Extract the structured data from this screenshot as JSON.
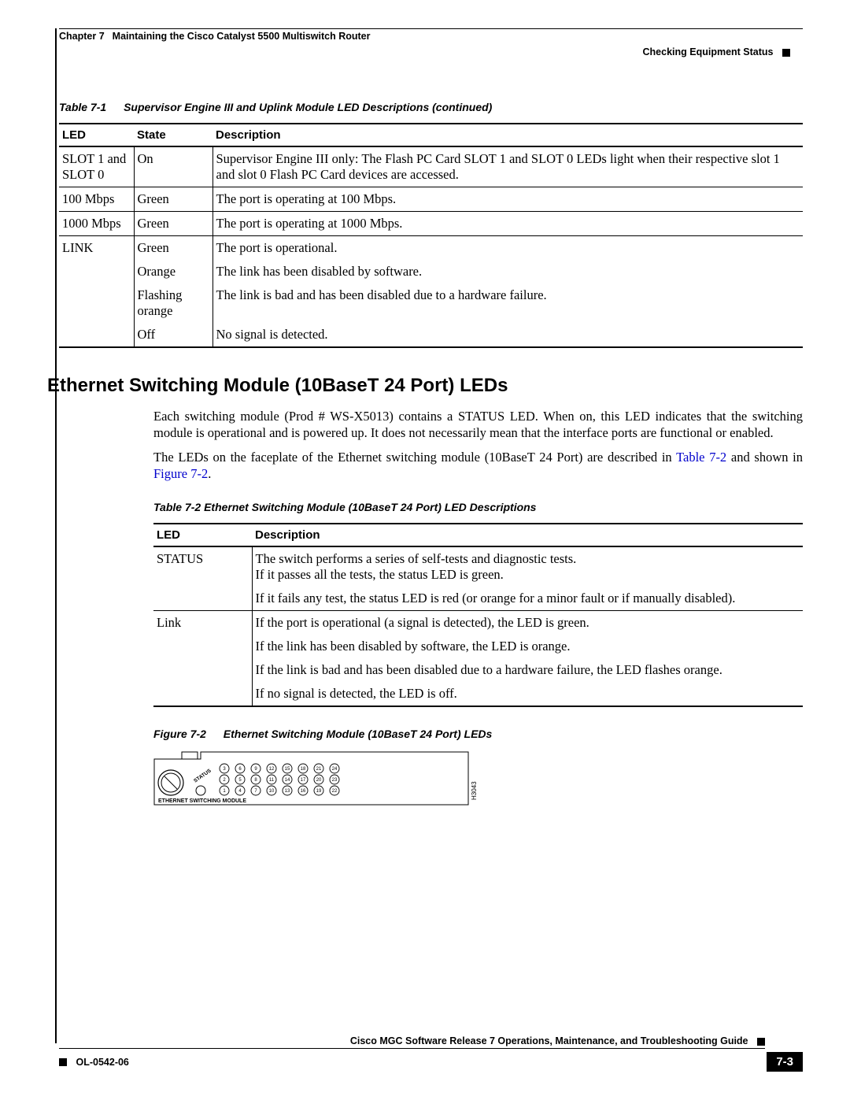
{
  "header": {
    "chapter_label": "Chapter 7",
    "chapter_title": "Maintaining the Cisco Catalyst 5500 Multiswitch Router",
    "section": "Checking Equipment Status"
  },
  "table1": {
    "caption_label": "Table 7-1",
    "caption_text": "Supervisor Engine III and Uplink Module LED Descriptions (continued)",
    "headers": {
      "led": "LED",
      "state": "State",
      "desc": "Description"
    },
    "rows": [
      {
        "led": "SLOT 1 and SLOT 0",
        "state": "On",
        "desc": "Supervisor Engine III only: The Flash PC Card SLOT 1 and SLOT 0 LEDs light when their respective slot 1 and slot 0 Flash PC Card devices are accessed."
      },
      {
        "led": "100 Mbps",
        "state": "Green",
        "desc": "The port is operating at 100 Mbps."
      },
      {
        "led": "1000 Mbps",
        "state": "Green",
        "desc": "The port is operating at 1000 Mbps."
      },
      {
        "led": "LINK",
        "state": "Green",
        "desc": "The port is operational."
      },
      {
        "led": "",
        "state": "Orange",
        "desc": "The link has been disabled by software."
      },
      {
        "led": "",
        "state": "Flashing orange",
        "desc": "The link is bad and has been disabled due to a hardware failure."
      },
      {
        "led": "",
        "state": "Off",
        "desc": "No signal is detected."
      }
    ]
  },
  "section_heading": "Ethernet Switching Module (10BaseT 24 Port) LEDs",
  "para1": "Each switching module (Prod # WS-X5013) contains a STATUS LED. When on, this LED indicates that the switching module is operational and is powered up. It does not necessarily mean that the interface ports are functional or enabled.",
  "para2_a": "The LEDs on the faceplate of the Ethernet switching module (10BaseT 24 Port) are described in ",
  "xref_table": "Table 7-2",
  "para2_b": " and shown in ",
  "xref_figure": "Figure 7-2",
  "para2_c": ".",
  "table2": {
    "caption_label": "Table 7-2",
    "caption_text": "Ethernet Switching Module (10BaseT 24 Port) LED Descriptions",
    "headers": {
      "led": "LED",
      "desc": "Description"
    },
    "rows": [
      {
        "led": "STATUS",
        "desc": "The switch performs a series of self-tests and diagnostic tests.\nIf it passes all the tests, the status LED is green."
      },
      {
        "led": "",
        "desc": "If it fails any test, the status LED is red (or orange for a minor fault or if manually disabled)."
      },
      {
        "led": "Link",
        "desc": "If the port is operational (a signal is detected), the LED is green."
      },
      {
        "led": "",
        "desc": "If the link has been disabled by software, the LED is orange."
      },
      {
        "led": "",
        "desc": "If the link is bad and has been disabled due to a hardware failure, the LED flashes orange."
      },
      {
        "led": "",
        "desc": "If no signal is detected, the LED is off."
      }
    ]
  },
  "figure": {
    "caption_label": "Figure 7-2",
    "caption_text": "Ethernet Switching Module (10BaseT 24 Port) LEDs",
    "module_label": "ETHERNET SWITCHING MODULE",
    "status_label": "STATUS",
    "hnum": "H3043",
    "port_rows": [
      [
        3,
        6,
        9,
        12,
        15,
        18,
        21,
        24
      ],
      [
        2,
        5,
        8,
        11,
        14,
        17,
        20,
        23
      ],
      [
        1,
        4,
        7,
        10,
        13,
        16,
        19,
        22
      ]
    ]
  },
  "footer": {
    "guide": "Cisco MGC Software Release 7 Operations, Maintenance, and Troubleshooting Guide",
    "doc": "OL-0542-06",
    "page": "7-3"
  },
  "colors": {
    "text": "#000000",
    "link": "#0000cc",
    "bg": "#ffffff"
  }
}
